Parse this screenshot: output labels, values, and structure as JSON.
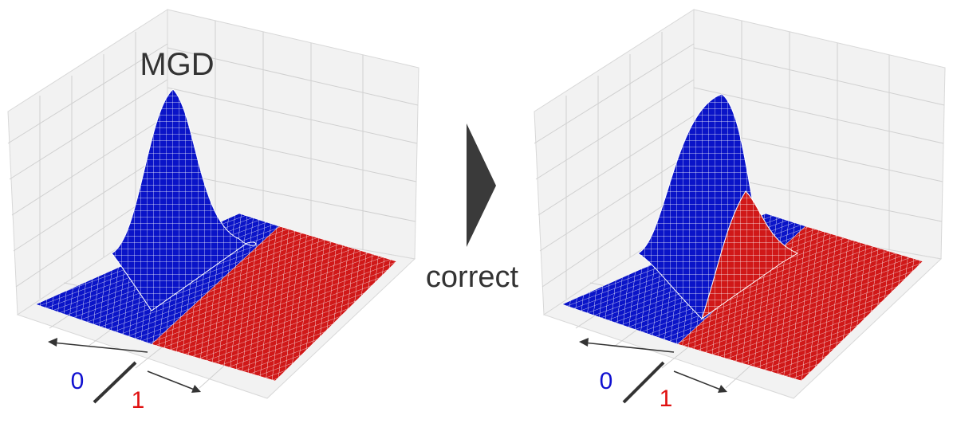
{
  "left": {
    "title": "MGD",
    "label_0": "0",
    "label_1": "1"
  },
  "arrow_label": "correct",
  "right": {
    "label_0": "0",
    "label_1": "1"
  }
}
